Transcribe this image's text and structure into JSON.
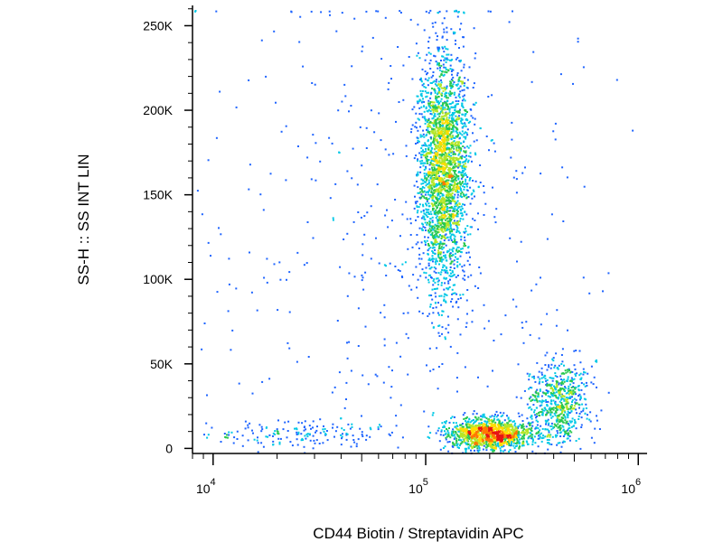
{
  "chart_data": {
    "type": "scatter",
    "title": "",
    "xlabel": "CD44 Biotin / Streptavidin APC",
    "ylabel": "SS-H :: SS INT LIN",
    "x_scale": "log",
    "xlim": [
      8000,
      1100000
    ],
    "ylim": [
      -3000,
      262000
    ],
    "x_ticks": [
      {
        "value": 10000,
        "base": "10",
        "exp": "4"
      },
      {
        "value": 100000,
        "base": "10",
        "exp": "5"
      },
      {
        "value": 1000000,
        "base": "10",
        "exp": "6"
      }
    ],
    "y_ticks": [
      {
        "value": 0,
        "label": "0"
      },
      {
        "value": 50000,
        "label": "50K"
      },
      {
        "value": 100000,
        "label": "100K"
      },
      {
        "value": 150000,
        "label": "150K"
      },
      {
        "value": 200000,
        "label": "200K"
      },
      {
        "value": 250000,
        "label": "250K"
      }
    ],
    "grid": false,
    "legend": "none",
    "colormap": "density (blue - cyan - green - yellow - red)",
    "colormap_colors": [
      "#0a14c8",
      "#1e64ff",
      "#00c8e6",
      "#28c850",
      "#b4e628",
      "#ffdc00",
      "#ff7800",
      "#e61414"
    ],
    "populations": [
      {
        "name": "",
        "x_center": 120000,
        "x_spread_log10": 0.06,
        "y_center": 165000,
        "y_spread": 35000,
        "events": 2600,
        "peak": "green-yellow"
      },
      {
        "name": "",
        "x_center": 200000,
        "x_spread_log10": 0.1,
        "y_center": 9000,
        "y_spread": 4500,
        "events": 1300,
        "peak": "red"
      },
      {
        "name": "",
        "x_center": 420000,
        "x_spread_log10": 0.07,
        "y_center": 28000,
        "y_spread": 12000,
        "events": 650,
        "peak": "green"
      },
      {
        "name": "",
        "x_center": 25000,
        "x_spread_log10": 0.25,
        "y_center": 9000,
        "y_spread": 4000,
        "events": 180,
        "peak": "blue"
      },
      {
        "name": "",
        "x_center": 70000,
        "x_spread_log10": 0.45,
        "y_center": 130000,
        "y_spread": 80000,
        "events": 420,
        "peak": "blue"
      }
    ]
  }
}
